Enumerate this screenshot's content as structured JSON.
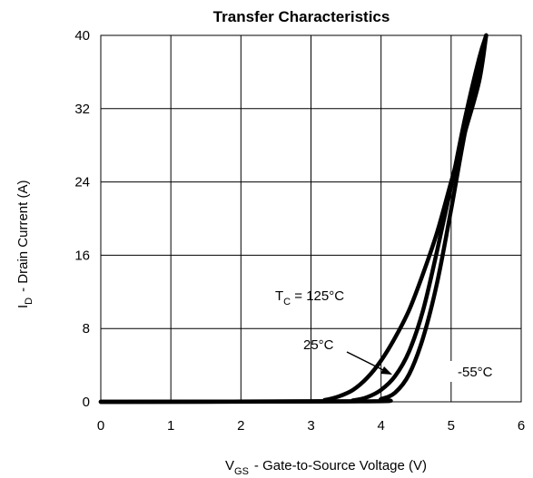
{
  "chart_data": {
    "type": "line",
    "title": "Transfer Characteristics",
    "xlabel": {
      "prefix": "V",
      "subscript": "GS",
      "text": "-  Gate-to-Source Voltage (V)"
    },
    "ylabel": {
      "prefix": "I",
      "subscript": "D",
      "text": "-  Drain Current (A)"
    },
    "xlim": [
      0,
      6
    ],
    "ylim": [
      0,
      40
    ],
    "xticks": [
      "0",
      "1",
      "2",
      "3",
      "4",
      "5",
      "6"
    ],
    "yticks": [
      "0",
      "8",
      "16",
      "24",
      "32",
      "40"
    ],
    "grid": true,
    "series": [
      {
        "name": "T_C = 125°C",
        "x": [
          0,
          3.0,
          3.2,
          3.4,
          3.6,
          3.8,
          4.0,
          4.2,
          4.4,
          4.6,
          4.8,
          5.0,
          5.2,
          5.4,
          5.5
        ],
        "y": [
          0,
          0.05,
          0.2,
          0.6,
          1.3,
          2.6,
          4.5,
          7.0,
          10.0,
          14.0,
          18.5,
          24.0,
          29.5,
          35.0,
          40.0
        ]
      },
      {
        "name": "25°C",
        "x": [
          0,
          3.4,
          3.6,
          3.8,
          4.0,
          4.2,
          4.4,
          4.6,
          4.8,
          5.0,
          5.2,
          5.4,
          5.5
        ],
        "y": [
          0,
          0.05,
          0.15,
          0.5,
          1.3,
          2.8,
          5.5,
          10.0,
          16.5,
          23.5,
          31.0,
          37.5,
          40.0
        ]
      },
      {
        "name": "-55°C",
        "x": [
          0,
          3.8,
          4.0,
          4.2,
          4.4,
          4.6,
          4.8,
          5.0,
          5.2,
          5.4,
          5.5
        ],
        "y": [
          0,
          0.05,
          0.3,
          1.0,
          3.0,
          7.0,
          13.0,
          21.0,
          29.5,
          36.5,
          40.0
        ]
      }
    ],
    "annotations": {
      "tc_prefix": "T",
      "tc_sub": "C",
      "tc_rest": " = 125°C",
      "t25": "25°C",
      "tm55": "-55°C"
    }
  }
}
